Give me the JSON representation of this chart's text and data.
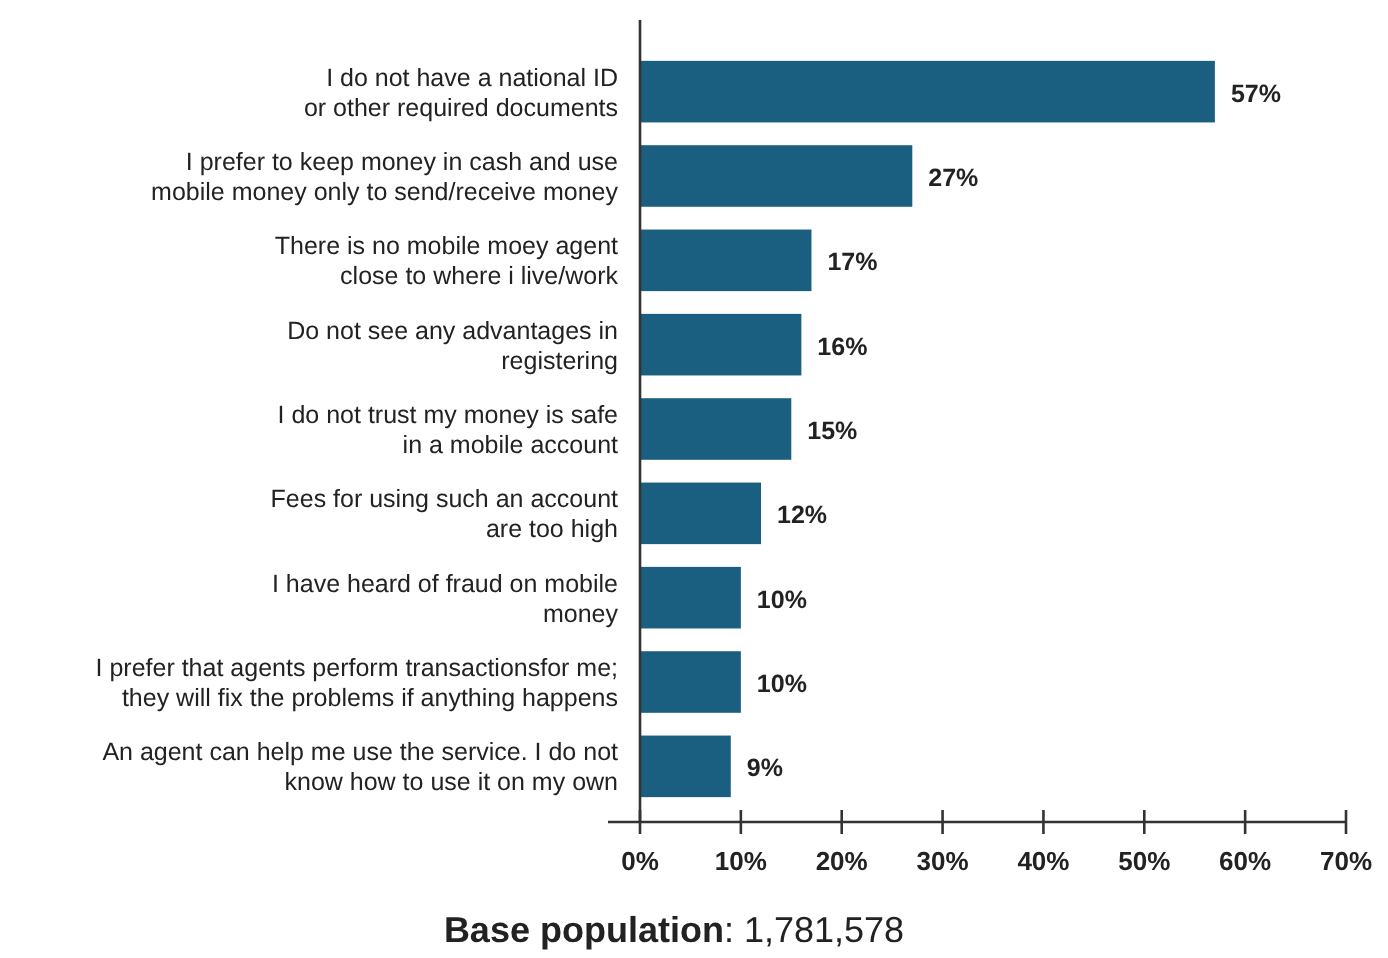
{
  "chart_data": {
    "type": "bar",
    "orientation": "horizontal",
    "categories": [
      "I do not have a national ID\nor other required documents",
      "I prefer to keep money in cash and use\nmobile money only to send/receive money",
      "There is no mobile moey agent\nclose to where i live/work",
      "Do not see any advantages in\nregistering",
      "I do not trust my money is safe\nin a mobile account",
      "Fees for using such an account\nare too high",
      "I have heard of fraud on mobile\nmoney",
      "I prefer that agents perform transactionsfor me;\nthey will fix the problems if anything happens",
      "An agent can help me use the service. I do not\nknow how to use it on my own"
    ],
    "values": [
      57,
      27,
      17,
      16,
      15,
      12,
      10,
      10,
      9
    ],
    "color": "#1a5f80",
    "xlim": [
      0,
      70
    ],
    "xticks": [
      {
        "value": 0,
        "label": "0%"
      },
      {
        "value": 10,
        "label": "10%"
      },
      {
        "value": 20,
        "label": "20%"
      },
      {
        "value": 30,
        "label": "30%"
      },
      {
        "value": 40,
        "label": "40%"
      },
      {
        "value": 50,
        "label": "50%"
      },
      {
        "value": 60,
        "label": "60%"
      },
      {
        "value": 70,
        "label": "70%"
      }
    ],
    "value_labels": [
      "57%",
      "27%",
      "17%",
      "16%",
      "15%",
      "12%",
      "10%",
      "10%",
      "9%"
    ],
    "annotations": [
      "Base population: 1,781,578"
    ]
  }
}
